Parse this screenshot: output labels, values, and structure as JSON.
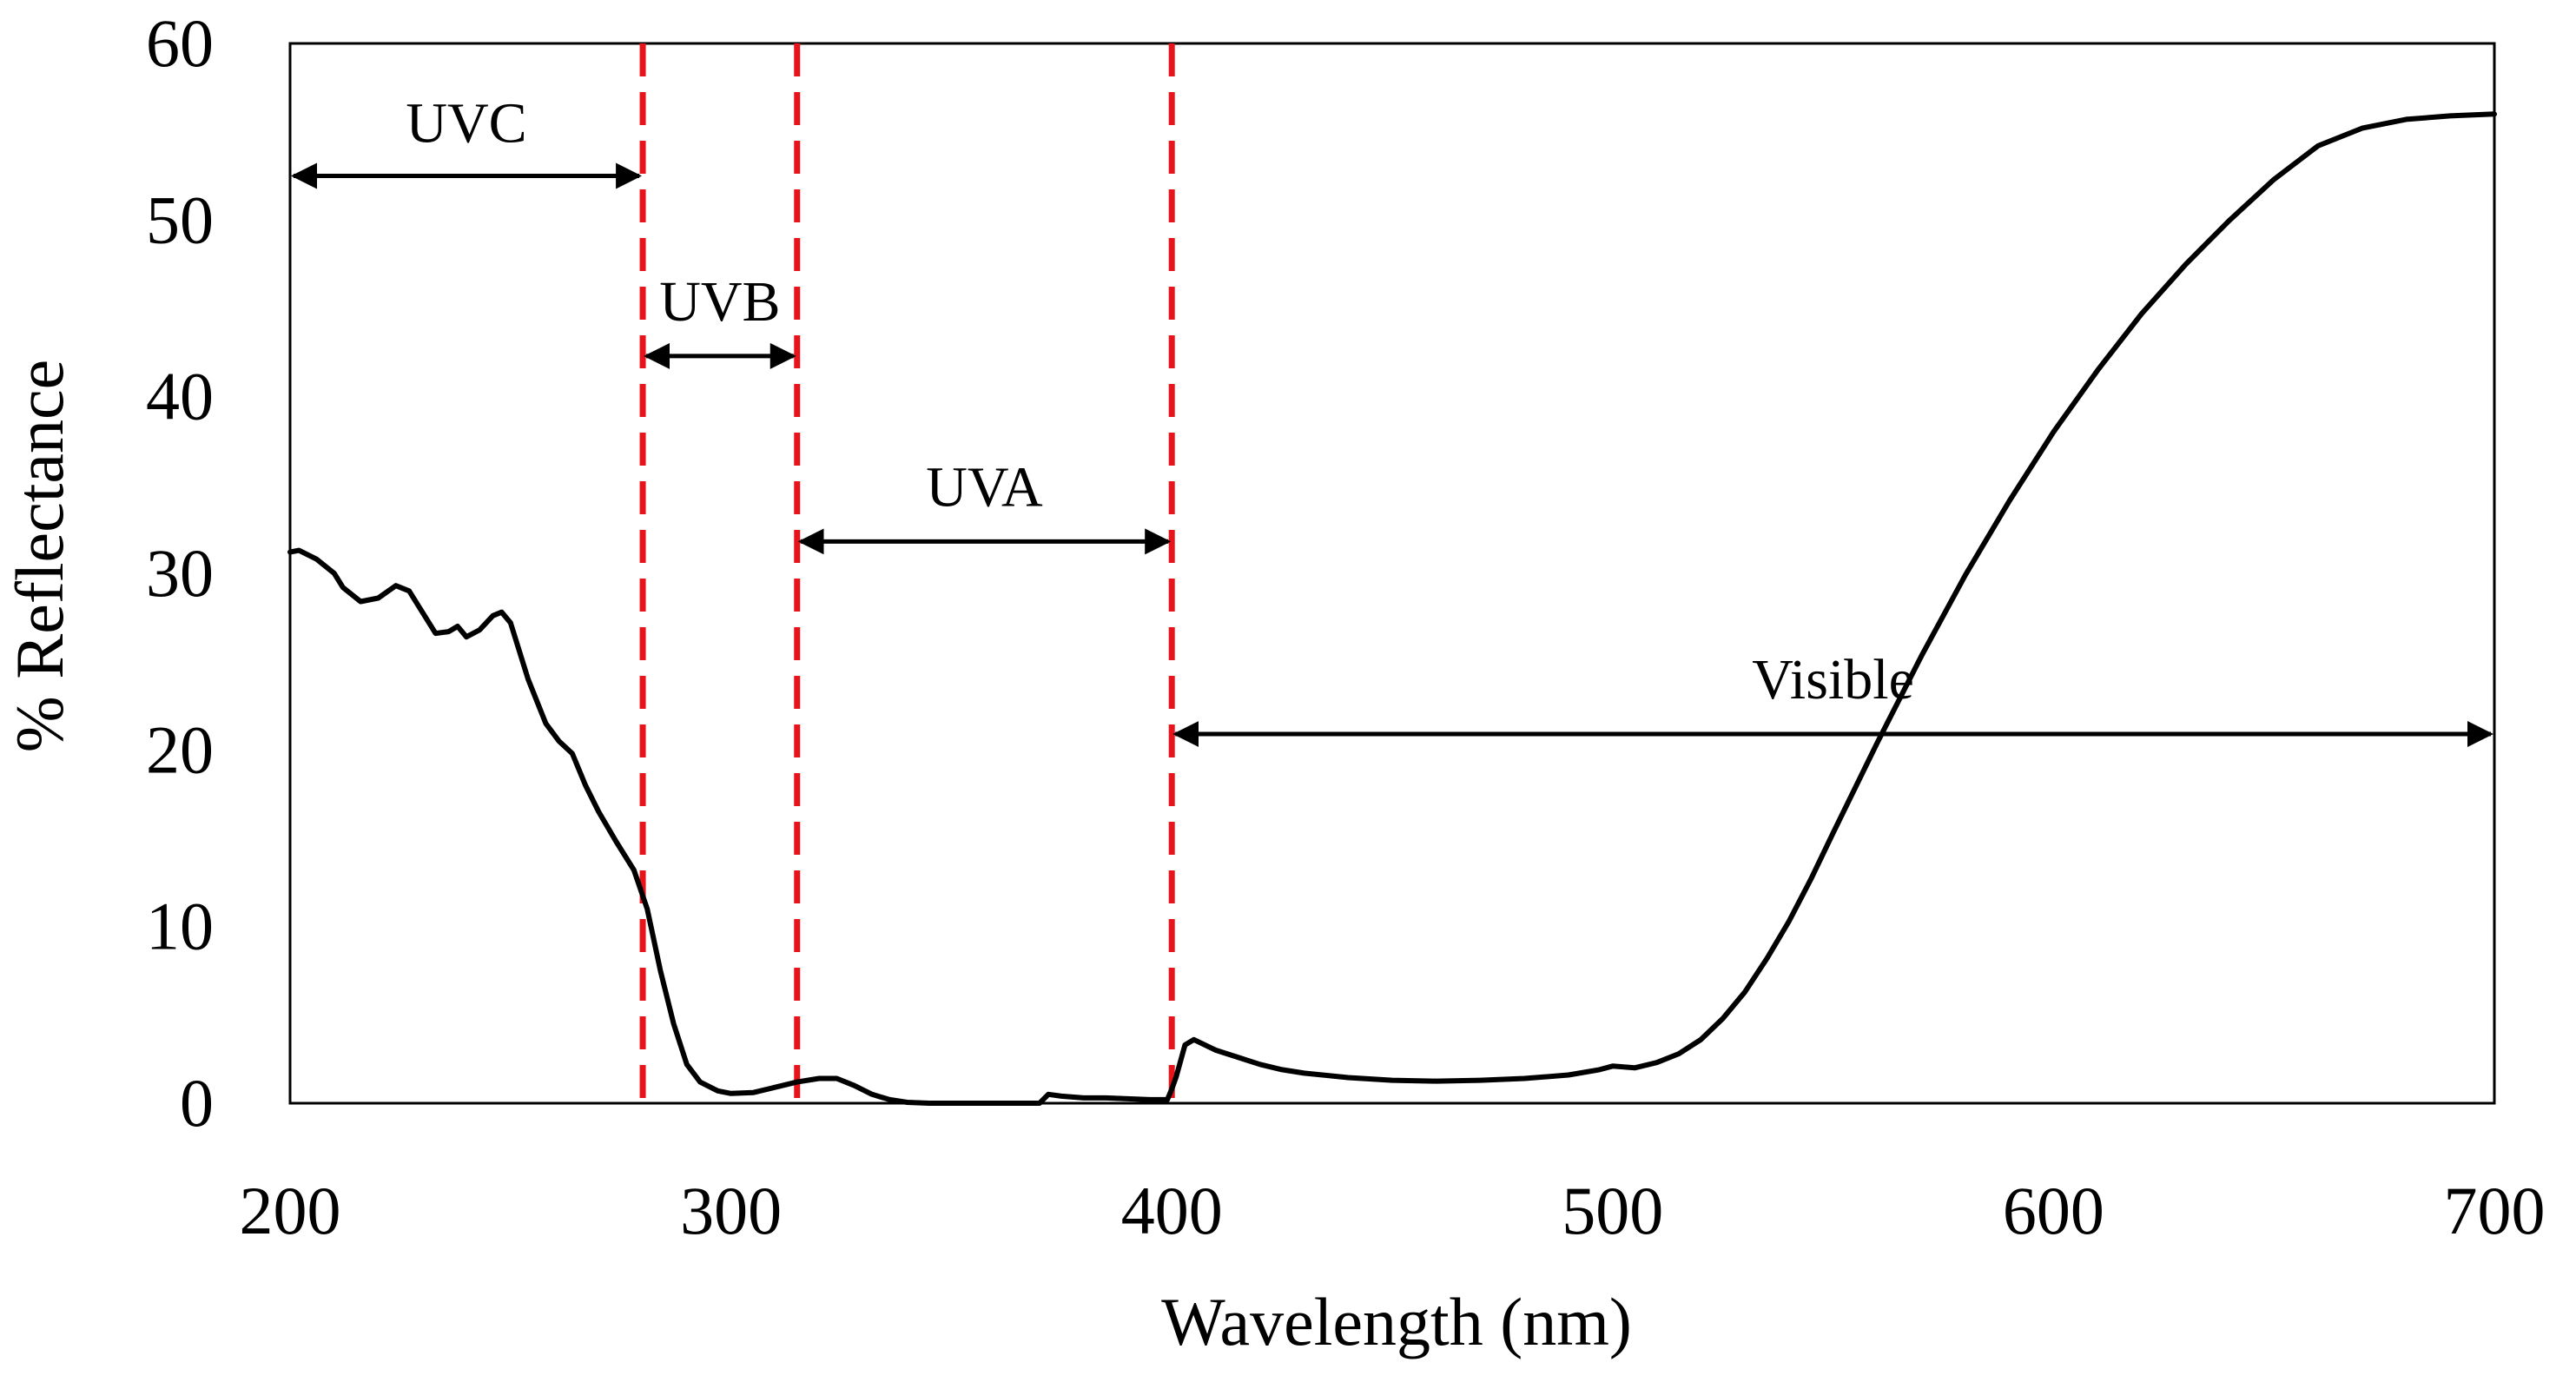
{
  "chart_data": {
    "type": "line",
    "title": "",
    "xlabel": "Wavelength (nm)",
    "ylabel": "% Reflectance",
    "xlim": [
      200,
      700
    ],
    "ylim": [
      0,
      60
    ],
    "x_ticks": [
      200,
      300,
      400,
      500,
      600,
      700
    ],
    "y_ticks": [
      0,
      10,
      20,
      30,
      40,
      50,
      60
    ],
    "x_tick_labels": [
      "200",
      "300",
      "400",
      "500",
      "600",
      "700"
    ],
    "y_tick_labels": [
      "0",
      "10",
      "20",
      "30",
      "40",
      "50",
      "60"
    ],
    "grid": false,
    "legend": "none",
    "series": [
      {
        "name": "% Reflectance",
        "color": "#000000",
        "x": [
          200,
          202,
          206,
          210,
          212,
          216,
          220,
          224,
          227,
          230,
          233,
          236,
          238,
          240,
          243,
          246,
          248,
          250,
          254,
          258,
          261,
          264,
          267,
          270,
          274,
          278,
          281,
          284,
          287,
          290,
          293,
          297,
          300,
          305,
          310,
          315,
          320,
          324,
          328,
          332,
          336,
          340,
          345,
          350,
          360,
          370,
          372,
          375,
          380,
          385,
          390,
          395,
          399,
          400,
          401,
          403,
          405,
          410,
          415,
          420,
          425,
          430,
          440,
          450,
          460,
          470,
          480,
          490,
          497,
          500,
          505,
          510,
          515,
          520,
          525,
          530,
          535,
          540,
          545,
          550,
          560,
          570,
          580,
          590,
          600,
          610,
          620,
          630,
          640,
          650,
          660,
          670,
          680,
          690,
          700
        ],
        "y": [
          31.2,
          31.3,
          30.8,
          30.0,
          29.2,
          28.4,
          28.6,
          29.3,
          29.0,
          27.8,
          26.6,
          26.7,
          27.0,
          26.4,
          26.8,
          27.6,
          27.8,
          27.2,
          24.0,
          21.5,
          20.5,
          19.8,
          18.0,
          16.5,
          14.8,
          13.2,
          11.0,
          7.5,
          4.5,
          2.2,
          1.2,
          0.7,
          0.55,
          0.6,
          0.9,
          1.2,
          1.4,
          1.4,
          1.0,
          0.5,
          0.2,
          0.05,
          0.0,
          0.0,
          0.0,
          0.0,
          0.5,
          0.4,
          0.3,
          0.3,
          0.25,
          0.2,
          0.2,
          0.8,
          1.5,
          3.3,
          3.6,
          3.0,
          2.6,
          2.2,
          1.9,
          1.7,
          1.45,
          1.3,
          1.25,
          1.3,
          1.4,
          1.6,
          1.9,
          2.1,
          2.0,
          2.3,
          2.8,
          3.6,
          4.8,
          6.3,
          8.2,
          10.3,
          12.7,
          15.3,
          20.4,
          25.3,
          29.9,
          34.1,
          38.0,
          41.5,
          44.7,
          47.5,
          50.0,
          52.3,
          54.2,
          55.2,
          55.7,
          55.9,
          56.0
        ]
      }
    ],
    "reference_lines": {
      "color": "#e8141c",
      "style": "dashed",
      "x": [
        280,
        315,
        400
      ]
    },
    "annotations": [
      {
        "id": "uvc",
        "label": "UVC",
        "x_start": 200,
        "x_end": 280,
        "y_arrow": 52.5,
        "y_label": 55.5
      },
      {
        "id": "uvb",
        "label": "UVB",
        "x_start": 280,
        "x_end": 315,
        "y_arrow": 42.3,
        "y_label": 45.4
      },
      {
        "id": "uva",
        "label": "UVA",
        "x_start": 315,
        "x_end": 400,
        "y_arrow": 31.8,
        "y_label": 34.9
      },
      {
        "id": "visible",
        "label": "Visible",
        "x_start": 400,
        "x_end": 700,
        "y_arrow": 20.9,
        "y_label": 24.0
      }
    ]
  }
}
